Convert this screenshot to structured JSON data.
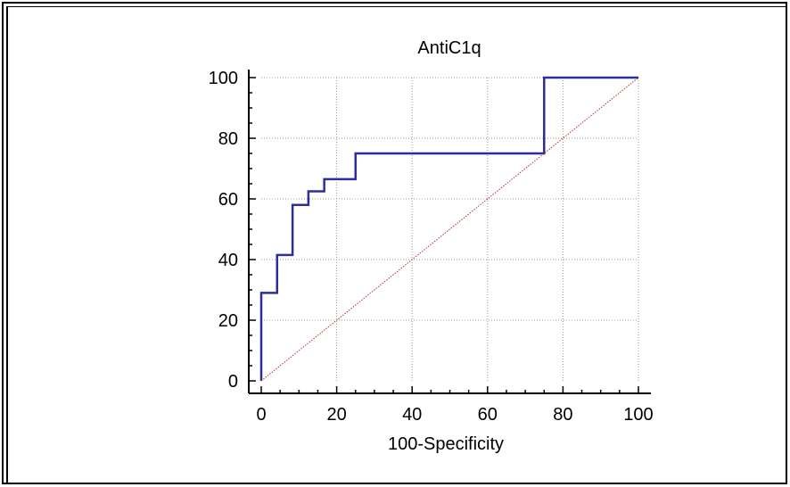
{
  "chart_data": {
    "type": "line",
    "title": "AntiC1q",
    "xlabel": "100-Specificity",
    "ylabel": "",
    "xlim": [
      0,
      100
    ],
    "ylim": [
      0,
      100
    ],
    "x_ticks": [
      "0",
      "20",
      "40",
      "60",
      "80",
      "100"
    ],
    "y_ticks": [
      "0",
      "20",
      "40",
      "60",
      "80",
      "100"
    ],
    "grid": true,
    "series": [
      {
        "color": "#2e2e9a",
        "step": true,
        "points": [
          [
            0,
            0
          ],
          [
            0,
            29
          ],
          [
            4.2,
            29
          ],
          [
            4.2,
            41.5
          ],
          [
            8.3,
            41.5
          ],
          [
            8.3,
            58
          ],
          [
            12.5,
            58
          ],
          [
            12.5,
            62.5
          ],
          [
            16.7,
            62.5
          ],
          [
            16.7,
            66.5
          ],
          [
            25,
            66.5
          ],
          [
            25,
            75
          ],
          [
            75,
            75
          ],
          [
            75,
            100
          ],
          [
            100,
            100
          ]
        ]
      },
      {
        "color": "#b03030",
        "style": "dotted",
        "points": [
          [
            0,
            0
          ],
          [
            100,
            100
          ]
        ]
      }
    ]
  }
}
